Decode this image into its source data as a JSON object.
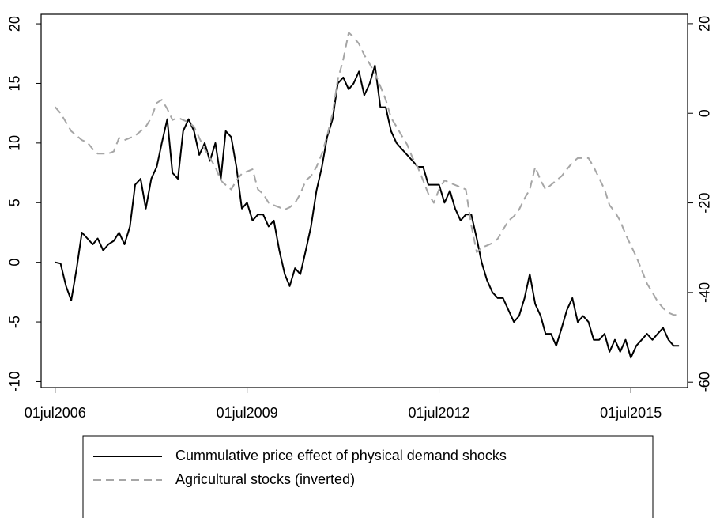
{
  "chart_data": {
    "type": "line",
    "x": [
      "2006-07-01",
      "2006-08-01",
      "2006-09-01",
      "2006-10-01",
      "2006-11-01",
      "2006-12-01",
      "2007-01-01",
      "2007-02-01",
      "2007-03-01",
      "2007-04-01",
      "2007-05-01",
      "2007-06-01",
      "2007-07-01",
      "2007-08-01",
      "2007-09-01",
      "2007-10-01",
      "2007-11-01",
      "2007-12-01",
      "2008-01-01",
      "2008-02-01",
      "2008-03-01",
      "2008-04-01",
      "2008-05-01",
      "2008-06-01",
      "2008-07-01",
      "2008-08-01",
      "2008-09-01",
      "2008-10-01",
      "2008-11-01",
      "2008-12-01",
      "2009-01-01",
      "2009-02-01",
      "2009-03-01",
      "2009-04-01",
      "2009-05-01",
      "2009-06-01",
      "2009-07-01",
      "2009-08-01",
      "2009-09-01",
      "2009-10-01",
      "2009-11-01",
      "2009-12-01",
      "2010-01-01",
      "2010-02-01",
      "2010-03-01",
      "2010-04-01",
      "2010-05-01",
      "2010-06-01",
      "2010-07-01",
      "2010-08-01",
      "2010-09-01",
      "2010-10-01",
      "2010-11-01",
      "2010-12-01",
      "2011-01-01",
      "2011-02-01",
      "2011-03-01",
      "2011-04-01",
      "2011-05-01",
      "2011-06-01",
      "2011-07-01",
      "2011-08-01",
      "2011-09-01",
      "2011-10-01",
      "2011-11-01",
      "2011-12-01",
      "2012-01-01",
      "2012-02-01",
      "2012-03-01",
      "2012-04-01",
      "2012-05-01",
      "2012-06-01",
      "2012-07-01",
      "2012-08-01",
      "2012-09-01",
      "2012-10-01",
      "2012-11-01",
      "2012-12-01",
      "2013-01-01",
      "2013-02-01",
      "2013-03-01",
      "2013-04-01",
      "2013-05-01",
      "2013-06-01",
      "2013-07-01",
      "2013-08-01",
      "2013-09-01",
      "2013-10-01",
      "2013-11-01",
      "2013-12-01",
      "2014-01-01",
      "2014-02-01",
      "2014-03-01",
      "2014-04-01",
      "2014-05-01",
      "2014-06-01",
      "2014-07-01",
      "2014-08-01",
      "2014-09-01",
      "2014-10-01",
      "2014-11-01",
      "2014-12-01",
      "2015-01-01",
      "2015-02-01",
      "2015-03-01",
      "2015-04-01",
      "2015-05-01",
      "2015-06-01",
      "2015-07-01",
      "2015-08-01",
      "2015-09-01",
      "2015-10-01",
      "2015-11-01",
      "2015-12-01",
      "2016-01-01",
      "2016-02-01",
      "2016-03-01",
      "2016-04-01"
    ],
    "series": [
      {
        "name": "Cummulative price effect of physical demand shocks",
        "color": "#000000",
        "axis": "y",
        "values": [
          0,
          -0.1,
          -2,
          -3.2,
          -0.5,
          2.5,
          2,
          1.5,
          2,
          1,
          1.5,
          1.8,
          2.5,
          1.5,
          3,
          6.5,
          7,
          4.5,
          7,
          8,
          10,
          12,
          7.5,
          7,
          11,
          12,
          11,
          9,
          10,
          8.5,
          10,
          7,
          11,
          10.5,
          8,
          4.5,
          5,
          3.5,
          4,
          4,
          3,
          3.5,
          1,
          -1,
          -2,
          -0.5,
          -1,
          1,
          3,
          6,
          8,
          10.5,
          12,
          15,
          15.5,
          14.5,
          15,
          16,
          14,
          15,
          16.5,
          13,
          13,
          11,
          10,
          9.5,
          9,
          8.5,
          8,
          8,
          6.5,
          6.5,
          6.5,
          5,
          6,
          4.5,
          3.5,
          4,
          4,
          2,
          0,
          -1.5,
          -2.5,
          -3,
          -3,
          -4,
          -5,
          -4.5,
          -3,
          -1,
          -3.5,
          -4.5,
          -6,
          -6,
          -7,
          -5.5,
          -4,
          -3,
          -5,
          -4.5,
          -5,
          -6.5,
          -6.5,
          -6,
          -7.5,
          -6.5,
          -7.5,
          -6.5,
          -8,
          -7,
          -6.5,
          -6,
          -6.5,
          -6,
          -5.5,
          -6.5,
          -7,
          -7
        ]
      },
      {
        "name": "Agricultural stocks (inverted)",
        "color": "#a6a6a6",
        "dashed": true,
        "axis": "y2",
        "values": [
          1.4,
          0,
          -2,
          -4,
          -5,
          -6,
          -6.5,
          -8,
          -9,
          -9,
          -9,
          -8.5,
          -5.5,
          -6,
          -5.5,
          -5,
          -4,
          -3,
          -1,
          2.3,
          3,
          1,
          -1.5,
          -1,
          -1.5,
          -2,
          -3,
          -5.5,
          -8,
          -10,
          -12,
          -15,
          -16,
          -17,
          -15,
          -13.5,
          -13,
          -12.5,
          -17,
          -18,
          -20,
          -20.5,
          -21,
          -21.5,
          -21,
          -20,
          -18,
          -15,
          -14,
          -12,
          -9,
          -5,
          0,
          7.5,
          12,
          18,
          17,
          15.5,
          13,
          11,
          9,
          6,
          3,
          -1,
          -3,
          -5,
          -7,
          -10,
          -12,
          -15,
          -18,
          -20,
          -17,
          -15,
          -15.5,
          -16,
          -16.5,
          -17,
          -25,
          -31,
          -30,
          -29.5,
          -29,
          -28,
          -26,
          -24,
          -23,
          -21.5,
          -19,
          -17,
          -12,
          -15,
          -17,
          -16,
          -15,
          -14,
          -12.5,
          -11,
          -10,
          -10,
          -10,
          -12,
          -14.5,
          -17,
          -20.5,
          -22,
          -24,
          -27,
          -29.5,
          -32,
          -35,
          -38,
          -40,
          -42,
          -43.5,
          -44.5,
          -45,
          -45
        ]
      }
    ],
    "xlim": [
      "2006-04-12",
      "2016-05-20"
    ],
    "xticks": [
      {
        "value": "2006-07-01",
        "label": "01jul2006"
      },
      {
        "value": "2009-07-01",
        "label": "01jul2009"
      },
      {
        "value": "2012-07-01",
        "label": "01jul2012"
      },
      {
        "value": "2015-07-01",
        "label": "01jul2015"
      }
    ],
    "ylim": [
      -10.5,
      20.8
    ],
    "yticks": [
      -10,
      -5,
      0,
      5,
      10,
      15,
      20
    ],
    "y2lim": [
      -61.2,
      22.1
    ],
    "y2ticks": [
      -60,
      -40,
      -20,
      0,
      20
    ]
  }
}
